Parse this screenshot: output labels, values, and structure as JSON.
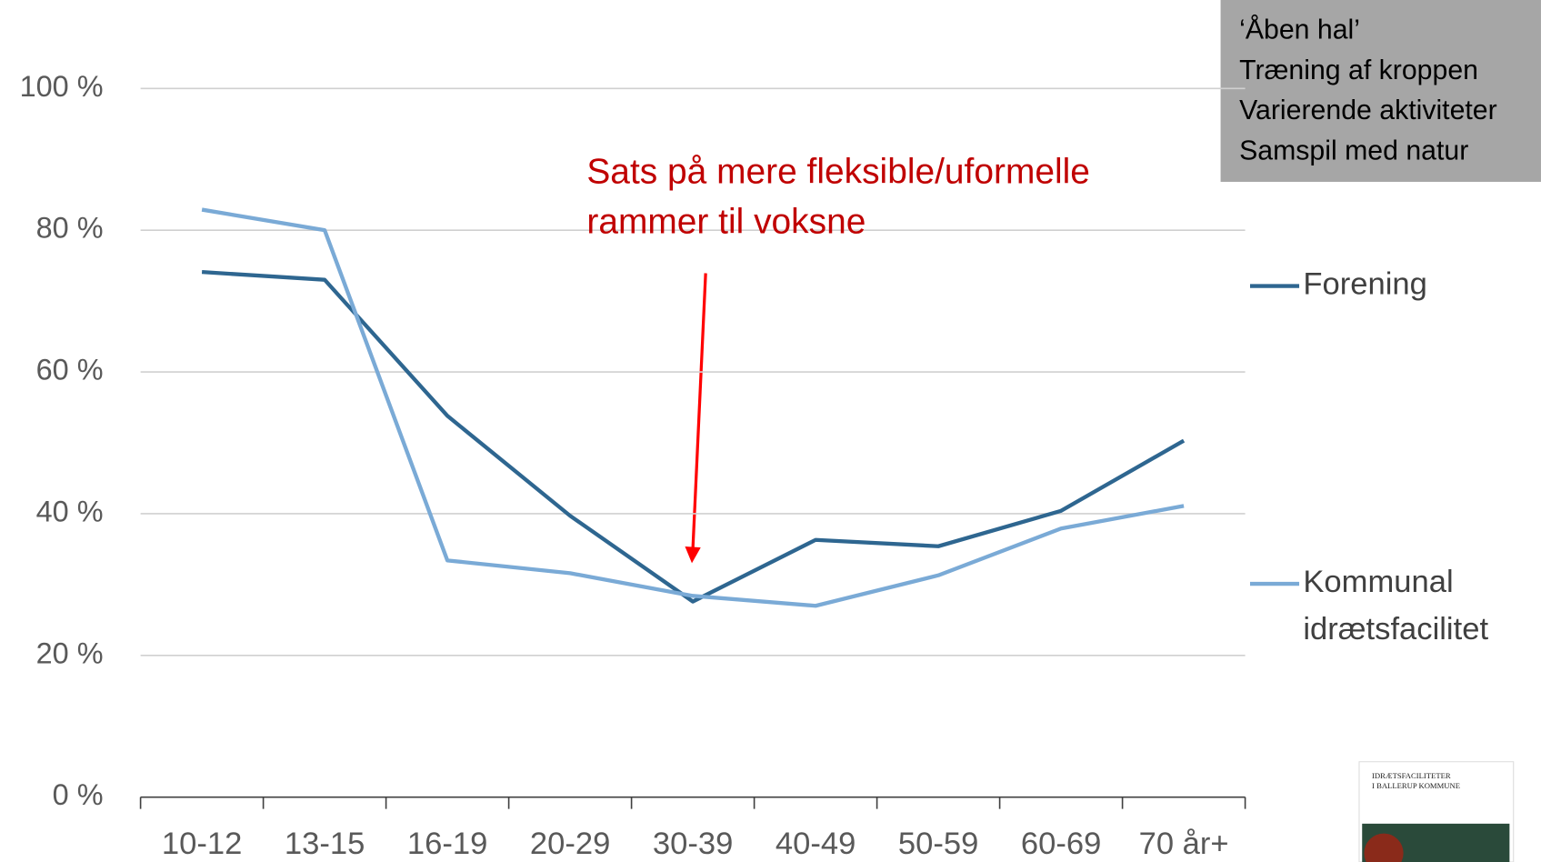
{
  "chart_data": {
    "type": "line",
    "categories": [
      "10-12",
      "13-15",
      "16-19",
      "20-29",
      "30-39",
      "40-49",
      "50-59",
      "60-69",
      "70 år+"
    ],
    "series": [
      {
        "name": "Forening",
        "color": "#2e6690",
        "values": [
          74.1,
          73,
          53.8,
          39.7,
          27.6,
          36.3,
          35.4,
          40.4,
          50.3
        ]
      },
      {
        "name": "Kommunal idrætsfacilitet",
        "color": "#7aaad6",
        "values": [
          82.9,
          80,
          33.4,
          31.6,
          28.4,
          27,
          31.3,
          37.9,
          41.1
        ]
      }
    ],
    "ylim": [
      0,
      100
    ],
    "yticks": [
      {
        "value": 0,
        "label": "0 %"
      },
      {
        "value": 20,
        "label": "20 %"
      },
      {
        "value": 40,
        "label": "40 %"
      },
      {
        "value": 60,
        "label": "60 %"
      },
      {
        "value": 80,
        "label": "80 %"
      },
      {
        "value": 100,
        "label": "100 %"
      }
    ],
    "grid": true,
    "legend": "right",
    "annotation": [
      "Sats på mere fleksible/uformelle",
      "rammer til voksne"
    ],
    "notes": [
      "‘Åben hal’",
      "Træning af kroppen",
      "Varierende aktiviteter",
      "Samspil med natur"
    ],
    "cover_title": [
      "IDRÆTSFACILITETER",
      "I BALLERUP KOMMUNE"
    ]
  }
}
